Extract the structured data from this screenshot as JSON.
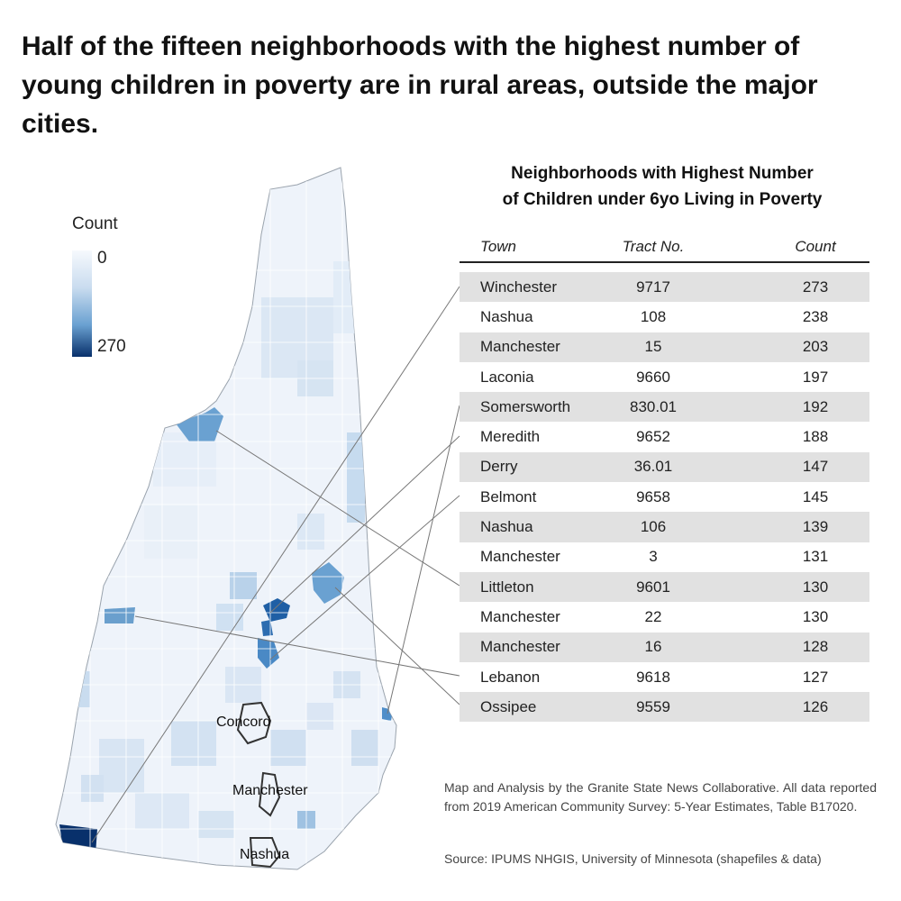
{
  "headline": "Half of the fifteen neighborhoods with the highest number of young children in poverty are in rural areas, outside the major cities.",
  "legend": {
    "title": "Count",
    "min": "0",
    "max": "270"
  },
  "cities": [
    "Concord",
    "Manchester",
    "Nashua"
  ],
  "table": {
    "title_line1": "Neighborhoods with Highest Number",
    "title_line2": "of Children under 6yo Living in Poverty",
    "columns": [
      "Town",
      "Tract No.",
      "Count"
    ],
    "rows": [
      {
        "town": "Winchester",
        "tract": "9717",
        "count": "273"
      },
      {
        "town": "Nashua",
        "tract": "108",
        "count": "238"
      },
      {
        "town": "Manchester",
        "tract": "15",
        "count": "203"
      },
      {
        "town": "Laconia",
        "tract": "9660",
        "count": "197"
      },
      {
        "town": "Somersworth",
        "tract": "830.01",
        "count": "192"
      },
      {
        "town": "Meredith",
        "tract": "9652",
        "count": "188"
      },
      {
        "town": "Derry",
        "tract": "36.01",
        "count": "147"
      },
      {
        "town": "Belmont",
        "tract": "9658",
        "count": "145"
      },
      {
        "town": "Nashua",
        "tract": "106",
        "count": "139"
      },
      {
        "town": "Manchester",
        "tract": "3",
        "count": "131"
      },
      {
        "town": "Littleton",
        "tract": "9601",
        "count": "130"
      },
      {
        "town": "Manchester",
        "tract": "22",
        "count": "130"
      },
      {
        "town": "Manchester",
        "tract": "16",
        "count": "128"
      },
      {
        "town": "Lebanon",
        "tract": "9618",
        "count": "127"
      },
      {
        "town": "Ossipee",
        "tract": "9559",
        "count": "126"
      }
    ]
  },
  "note": "Map and Analysis by the Granite State News Collaborative. All data reported from 2019 American Community Survey: 5-Year Estimates, Table B17020.",
  "source": "Source: IPUMS NHGIS, University of Minnesota (shapefiles & data)",
  "colors": {
    "low": "#f6f9fd",
    "mid": "#6aa1d1",
    "high": "#08306b",
    "row_shade": "#e1e1e1"
  }
}
